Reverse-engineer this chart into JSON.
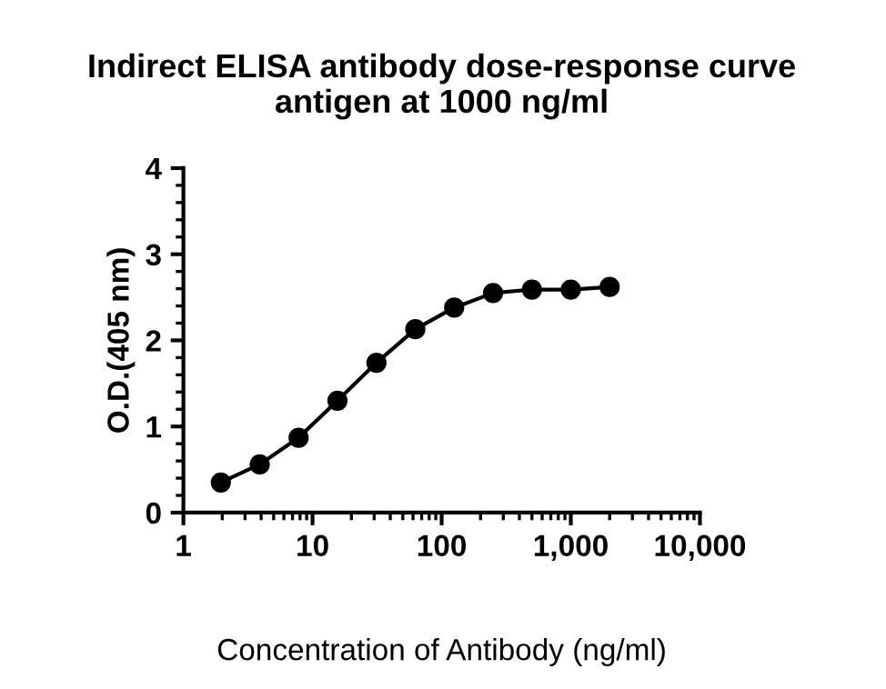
{
  "chart_data": {
    "type": "line",
    "title": "Indirect ELISA antibody dose-response curve\nantigen at 1000 ng/ml",
    "xlabel": "Concentration of Antibody (ng/ml)",
    "ylabel": "O.D.(405 nm)",
    "x": [
      1.95,
      3.9,
      7.8,
      15.6,
      31.25,
      62.5,
      125,
      250,
      500,
      1000,
      2000
    ],
    "series": [
      {
        "color": "#000000",
        "values": [
          0.35,
          0.56,
          0.87,
          1.3,
          1.74,
          2.13,
          2.38,
          2.55,
          2.59,
          2.59,
          2.62
        ]
      }
    ],
    "log": "x",
    "xlim": [
      1,
      10000
    ],
    "xticks": [
      1,
      10,
      100,
      {
        "value": 1000,
        "label": "1,000"
      },
      {
        "value": 10000,
        "label": "10,000"
      }
    ],
    "ylim": [
      0,
      4
    ],
    "yticks": [
      0,
      1,
      2,
      3,
      4
    ],
    "grid": false,
    "marker": "circle",
    "line_style": "solid"
  }
}
